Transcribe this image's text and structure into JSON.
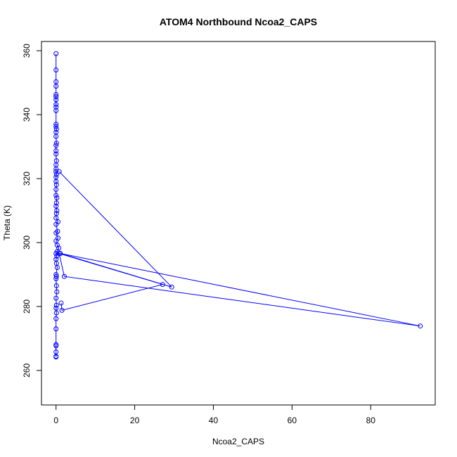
{
  "chart_data": {
    "type": "line",
    "title": "ATOM4 Northbound Ncoa2_CAPS",
    "xlabel": "Ncoa2_CAPS",
    "ylabel": "Theta (K)",
    "xlim": [
      -3.7,
      96.4
    ],
    "ylim": [
      249.2,
      362.9
    ],
    "xticks": [
      0,
      20,
      40,
      60,
      80
    ],
    "yticks": [
      260,
      280,
      300,
      320,
      340,
      360
    ],
    "grid": false,
    "legend": "none",
    "series": [
      {
        "color": "#0000ff",
        "marker": "open-circle",
        "points": [
          [
            0.0,
            264.2
          ],
          [
            0.0,
            264.4
          ],
          [
            0.0,
            265.8
          ],
          [
            0.0,
            267.7
          ],
          [
            0.0,
            268.1
          ],
          [
            0.0,
            273.0
          ],
          [
            0.0,
            276.2
          ],
          [
            0.1,
            278.0
          ],
          [
            0.0,
            279.5
          ],
          [
            0.1,
            280.4
          ],
          [
            0.0,
            282.6
          ],
          [
            0.2,
            284.6
          ],
          [
            0.1,
            286.5
          ],
          [
            0.0,
            288.7
          ],
          [
            0.1,
            289.4
          ],
          [
            0.0,
            290.0
          ],
          [
            0.3,
            292.2
          ],
          [
            0.1,
            293.5
          ],
          [
            0.0,
            294.8
          ],
          [
            0.2,
            295.8
          ],
          [
            0.0,
            296.6
          ],
          [
            0.3,
            297.2
          ],
          [
            0.7,
            298.3
          ],
          [
            0.3,
            299.2
          ],
          [
            0.0,
            300.5
          ],
          [
            0.5,
            301.4
          ],
          [
            0.0,
            303.0
          ],
          [
            0.4,
            303.5
          ],
          [
            0.0,
            305.7
          ],
          [
            0.5,
            306.5
          ],
          [
            0.0,
            307.7
          ],
          [
            0.1,
            309.1
          ],
          [
            0.2,
            310.0
          ],
          [
            0.0,
            311.4
          ],
          [
            0.1,
            312.4
          ],
          [
            0.2,
            314.0
          ],
          [
            0.0,
            314.8
          ],
          [
            0.0,
            316.6
          ],
          [
            0.1,
            318.1
          ],
          [
            0.0,
            319.1
          ],
          [
            0.0,
            320.5
          ],
          [
            0.1,
            321.3
          ],
          [
            0.0,
            322.2
          ],
          [
            0.0,
            323.0
          ],
          [
            0.0,
            324.3
          ],
          [
            0.1,
            325.6
          ],
          [
            0.0,
            327.7
          ],
          [
            0.0,
            328.7
          ],
          [
            0.0,
            330.4
          ],
          [
            0.1,
            331.1
          ],
          [
            0.0,
            333.2
          ],
          [
            0.0,
            334.5
          ],
          [
            0.1,
            335.5
          ],
          [
            0.0,
            336.3
          ],
          [
            0.0,
            337.0
          ],
          [
            0.0,
            341.3
          ],
          [
            0.0,
            342.4
          ],
          [
            0.0,
            343.2
          ],
          [
            0.0,
            344.7
          ],
          [
            0.0,
            345.6
          ],
          [
            0.0,
            346.3
          ],
          [
            0.0,
            348.9
          ],
          [
            0.0,
            350.3
          ],
          [
            0.0,
            354.0
          ],
          [
            0.0,
            359.1
          ]
        ],
        "excursions": [
          [
            0.8,
            322.2
          ],
          [
            29.4,
            286.1
          ],
          [
            1.1,
            296.6
          ],
          [
            92.6,
            273.9
          ],
          [
            2.1,
            289.4
          ],
          [
            0.8,
            296.6
          ],
          [
            27.1,
            286.9
          ],
          [
            1.5,
            278.8
          ],
          [
            1.3,
            281.1
          ]
        ]
      }
    ]
  }
}
